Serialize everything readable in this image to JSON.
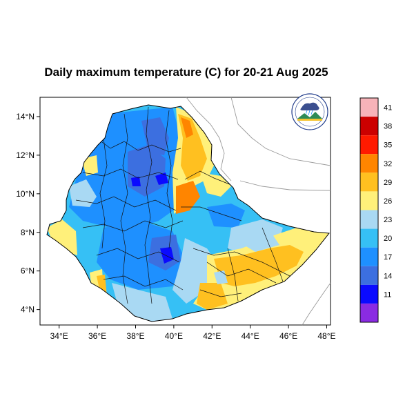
{
  "title": "Daily maximum temperature (C) for 20-21 Aug 2025",
  "map": {
    "region": "Ethiopia",
    "lon_range": [
      33,
      48.2
    ],
    "lat_range": [
      3.2,
      15
    ],
    "lon_ticks": [
      {
        "value": 34,
        "label": "34°E"
      },
      {
        "value": 36,
        "label": "36°E"
      },
      {
        "value": 38,
        "label": "38°E"
      },
      {
        "value": 40,
        "label": "40°E"
      },
      {
        "value": 42,
        "label": "42°E"
      },
      {
        "value": 44,
        "label": "44°E"
      },
      {
        "value": 46,
        "label": "46°E"
      },
      {
        "value": 48,
        "label": "48°E"
      }
    ],
    "lat_ticks": [
      {
        "value": 14,
        "label": "14°N"
      },
      {
        "value": 12,
        "label": "12°N"
      },
      {
        "value": 10,
        "label": "10°N"
      },
      {
        "value": 8,
        "label": "8°N"
      },
      {
        "value": 6,
        "label": "6°N"
      },
      {
        "value": 4,
        "label": "4°N"
      }
    ],
    "logo_icon": "ethiopian-meteorology-institute-logo"
  },
  "colorbar": {
    "levels": [
      {
        "color": "#f7b3b9",
        "label": "41"
      },
      {
        "color": "#cc0000",
        "label": "38"
      },
      {
        "color": "#ff1a00",
        "label": "35"
      },
      {
        "color": "#ff8500",
        "label": "32"
      },
      {
        "color": "#ffc020",
        "label": "29"
      },
      {
        "color": "#fff07a",
        "label": "26"
      },
      {
        "color": "#a9d9f3",
        "label": "23"
      },
      {
        "color": "#36c0f5",
        "label": "20"
      },
      {
        "color": "#1e90ff",
        "label": "17"
      },
      {
        "color": "#3c6fe0",
        "label": "14"
      },
      {
        "color": "#0a0aff",
        "label": "11"
      },
      {
        "color": "#8a2be2",
        "label": ""
      }
    ]
  }
}
